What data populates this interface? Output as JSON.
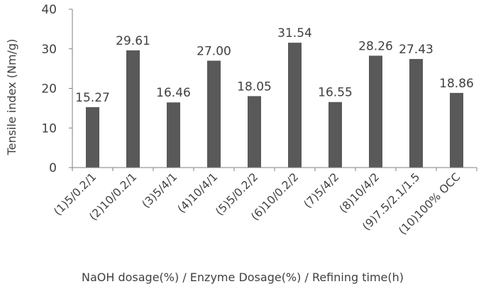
{
  "chart_data": {
    "type": "bar",
    "categories": [
      "(1)5/0.2/1",
      "(2)10/0.2/1",
      "(3)5/4/1",
      "(4)10/4/1",
      "(5)5/0.2/2",
      "(6)10/0.2/2",
      "(7)5/4/2",
      "(8)10/4/2",
      "(9)7.5/2.1/1.5",
      "(10)100% OCC"
    ],
    "values": [
      15.27,
      29.61,
      16.46,
      27.0,
      18.05,
      31.54,
      16.55,
      28.26,
      27.43,
      18.86
    ],
    "data_labels": [
      "15.27",
      "29.61",
      "16.46",
      "27.00",
      "18.05",
      "31.54",
      "16.55",
      "28.26",
      "27.43",
      "18.86"
    ],
    "ylabel": "Tensile index (Nm/g)",
    "xlabel": "NaOH dosage(%) / Enzyme Dosage(%) / Refining time(h)",
    "ylim": [
      0,
      40
    ],
    "yticks": [
      0,
      10,
      20,
      30,
      40
    ],
    "grid": false,
    "legend": "none",
    "bar_color": "#595959",
    "axis_color": "#7f7f7f"
  }
}
